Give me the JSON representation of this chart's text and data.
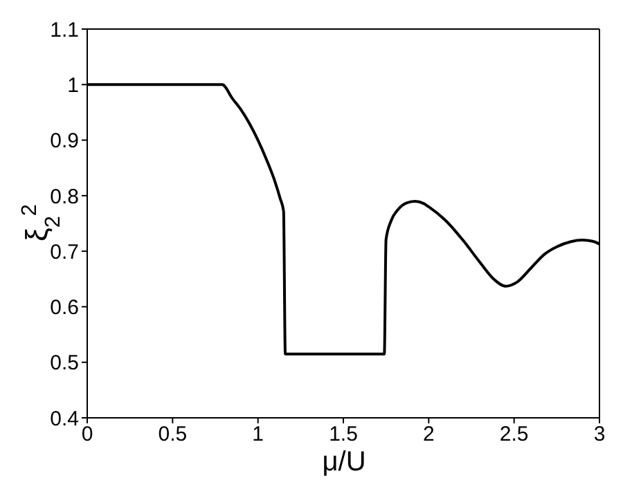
{
  "chart_data": {
    "type": "line",
    "xlabel": "μ/U",
    "ylabel": "ξ$_{2}$$^{2}$",
    "x": [
      0,
      0.79,
      0.85,
      0.9,
      0.95,
      1.0,
      1.05,
      1.1,
      1.13,
      1.15,
      1.16,
      1.74,
      1.75,
      1.78,
      1.82,
      1.87,
      1.92,
      1.97,
      2.0,
      2.1,
      2.2,
      2.3,
      2.38,
      2.45,
      2.52,
      2.6,
      2.68,
      2.75,
      2.83,
      2.9,
      2.96,
      3.0
    ],
    "series": [
      {
        "color": "#000000",
        "values": [
          1,
          1,
          0.975,
          0.955,
          0.93,
          0.9,
          0.865,
          0.825,
          0.795,
          0.772,
          0.515,
          0.515,
          0.721,
          0.755,
          0.775,
          0.787,
          0.79,
          0.786,
          0.78,
          0.755,
          0.72,
          0.68,
          0.65,
          0.637,
          0.645,
          0.67,
          0.695,
          0.708,
          0.717,
          0.72,
          0.718,
          0.713
        ]
      }
    ],
    "xlim": [
      0,
      3
    ],
    "xticks": [
      0,
      0.5,
      1,
      1.5,
      2,
      2.5,
      3
    ],
    "ylim": [
      0.4,
      1.1
    ],
    "yticks": [
      0.4,
      0.5,
      0.6,
      0.7,
      0.8,
      0.9,
      1,
      1.1
    ],
    "grid": false,
    "marker": "none",
    "line_style": "solid"
  }
}
